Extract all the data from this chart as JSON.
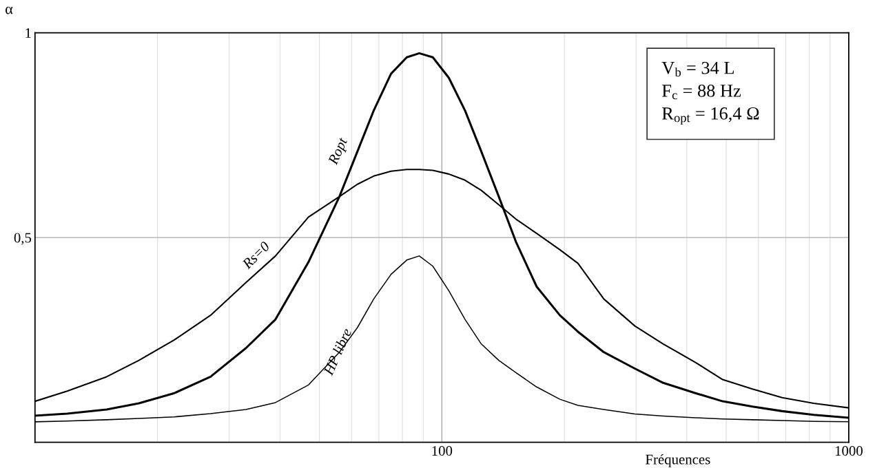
{
  "chart_data": {
    "type": "line",
    "xlabel": "Fréquences",
    "ylabel": "α",
    "log": "x",
    "xlim": [
      10,
      1000
    ],
    "xticks": [
      100,
      1000
    ],
    "ylim": [
      0,
      1
    ],
    "yticks": [
      {
        "value": 0.5,
        "label": "0,5"
      },
      1
    ],
    "grid": true,
    "marker": "none",
    "line_style": "solid",
    "annotations": [
      "V$_{b}$ = 34 L",
      "F$_{c}$ = 88 Hz",
      "R$_{opt}$ = 16,4 Ω"
    ],
    "series": [
      {
        "name": "Ropt",
        "color": "#000000",
        "x": [
          10,
          12,
          15,
          18,
          22,
          27,
          33,
          39,
          47,
          56,
          62,
          68,
          75,
          82,
          88,
          95,
          104,
          114,
          125,
          138,
          152,
          171,
          195,
          216,
          250,
          298,
          350,
          420,
          490,
          580,
          686,
          820,
          1000
        ],
        "values": [
          0.065,
          0.07,
          0.08,
          0.095,
          0.12,
          0.16,
          0.23,
          0.3,
          0.44,
          0.6,
          0.71,
          0.81,
          0.9,
          0.94,
          0.95,
          0.94,
          0.89,
          0.81,
          0.71,
          0.6,
          0.49,
          0.38,
          0.31,
          0.27,
          0.22,
          0.18,
          0.145,
          0.12,
          0.1,
          0.087,
          0.076,
          0.067,
          0.06
        ]
      },
      {
        "name": "Rs=0",
        "color": "#000000",
        "x": [
          10,
          12,
          15,
          18,
          22,
          27,
          33,
          39,
          47,
          56,
          62,
          68,
          75,
          82,
          88,
          95,
          104,
          114,
          125,
          138,
          152,
          171,
          195,
          216,
          250,
          298,
          350,
          420,
          490,
          580,
          686,
          820,
          1000
        ],
        "values": [
          0.1,
          0.125,
          0.16,
          0.2,
          0.25,
          0.31,
          0.39,
          0.455,
          0.55,
          0.6,
          0.63,
          0.65,
          0.662,
          0.666,
          0.666,
          0.664,
          0.655,
          0.64,
          0.615,
          0.58,
          0.545,
          0.51,
          0.47,
          0.437,
          0.35,
          0.284,
          0.24,
          0.195,
          0.153,
          0.13,
          0.109,
          0.095,
          0.084
        ]
      },
      {
        "name": "HP libre",
        "color": "#000000",
        "x": [
          10,
          12,
          15,
          18,
          22,
          27,
          33,
          39,
          47,
          56,
          62,
          68,
          75,
          82,
          88,
          95,
          104,
          114,
          125,
          138,
          152,
          171,
          195,
          216,
          250,
          298,
          350,
          420,
          490,
          580,
          686,
          820,
          1000
        ],
        "values": [
          0.05,
          0.052,
          0.055,
          0.058,
          0.062,
          0.07,
          0.08,
          0.097,
          0.14,
          0.22,
          0.28,
          0.35,
          0.41,
          0.445,
          0.455,
          0.43,
          0.37,
          0.3,
          0.24,
          0.2,
          0.17,
          0.135,
          0.105,
          0.09,
          0.08,
          0.069,
          0.064,
          0.06,
          0.057,
          0.055,
          0.053,
          0.051,
          0.05
        ]
      }
    ]
  }
}
